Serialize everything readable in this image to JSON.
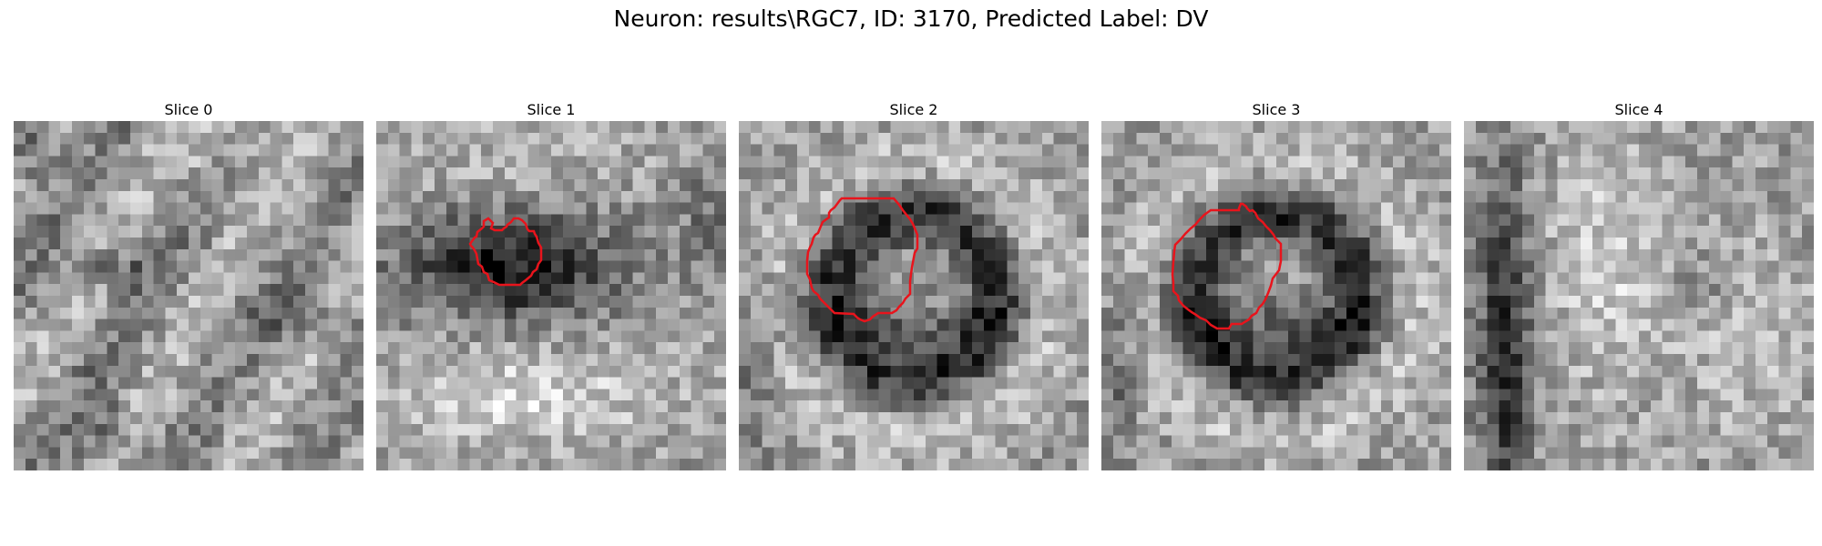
{
  "figure": {
    "title": "Neuron: results\\RGC7, ID: 3170, Predicted Label: DV"
  },
  "panels": [
    {
      "title": "Slice 0",
      "has_contour": false,
      "texture": "diagonal-streaks"
    },
    {
      "title": "Slice 1",
      "has_contour": true,
      "texture": "dark-blob-bright-below"
    },
    {
      "title": "Slice 2",
      "has_contour": true,
      "texture": "dark-ring-center"
    },
    {
      "title": "Slice 3",
      "has_contour": true,
      "texture": "dark-ring-center"
    },
    {
      "title": "Slice 4",
      "has_contour": false,
      "texture": "vertical-dark-band-left"
    }
  ],
  "colors": {
    "contour": "#e8141c",
    "background": "#ffffff"
  },
  "image": {
    "colormap": "grayscale",
    "grid": "30x30 pixels per slice"
  }
}
